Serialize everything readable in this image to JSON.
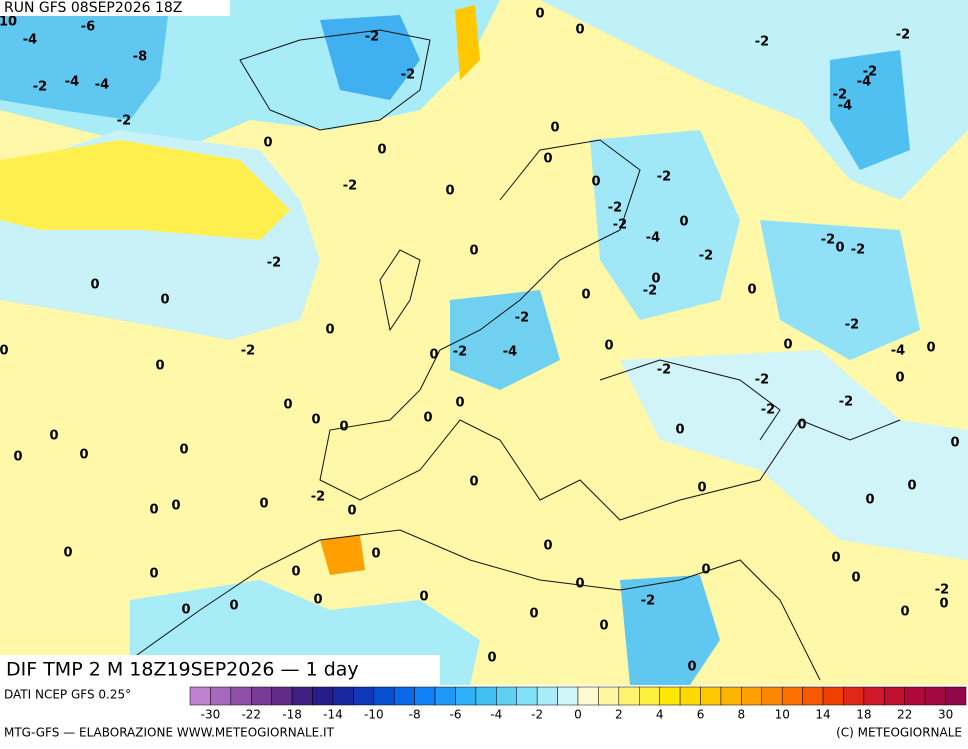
{
  "header": {
    "run": "RUN GFS 08SEP2026 18Z"
  },
  "map": {
    "title": "DIF TMP 2 M 18Z19SEP2026 — 1 day",
    "contour_labels": [
      10,
      -4,
      -6,
      -8,
      -2,
      -4,
      -4,
      -2,
      -2,
      -2,
      0,
      0,
      -2,
      -2,
      -2,
      -4,
      -2,
      -4,
      0,
      0,
      0,
      -2,
      0,
      0,
      0,
      -2,
      -2,
      -2,
      -4,
      0,
      -2,
      0,
      -2,
      -2,
      -2,
      0,
      0,
      -2,
      0,
      0,
      0,
      0,
      -2,
      0,
      -2,
      0,
      0,
      -2,
      -4,
      0,
      -2,
      -4,
      0,
      0,
      0,
      -2,
      -2,
      0,
      -2,
      -2,
      0,
      0,
      0,
      0,
      0,
      0,
      0,
      0,
      0,
      0,
      0,
      0,
      0,
      0,
      0,
      0,
      -2,
      0,
      0,
      0,
      0,
      0,
      0,
      0,
      0,
      0,
      0,
      0,
      0,
      0,
      0,
      0,
      0,
      0,
      -2,
      -2,
      0,
      0,
      0,
      0,
      0,
      0,
      -2
    ]
  },
  "colorbar": {
    "source": "DATI NCEP GFS 0.25°",
    "colors": [
      "#c080d0",
      "#a868c0",
      "#9050a8",
      "#783c98",
      "#602c88",
      "#402080",
      "#281c88",
      "#1828a0",
      "#1038b8",
      "#0850d0",
      "#0868e8",
      "#1080f8",
      "#2098f8",
      "#30b0f8",
      "#40c0f0",
      "#60d0f0",
      "#80e0f8",
      "#a8ecf8",
      "#d0f6fa",
      "#fffad0",
      "#fff8a0",
      "#fff470",
      "#fff040",
      "#ffe800",
      "#ffd800",
      "#ffc800",
      "#ffb400",
      "#ffa000",
      "#ff8800",
      "#ff7000",
      "#f85800",
      "#f04000",
      "#e02818",
      "#d01828",
      "#c01030",
      "#b00838",
      "#a00840",
      "#900848"
    ],
    "labels": [
      -30,
      -22,
      -18,
      -14,
      -10,
      -8,
      -6,
      -4,
      -2,
      0,
      2,
      4,
      6,
      8,
      10,
      14,
      18,
      22,
      30
    ]
  },
  "footer": {
    "left": "MTG-GFS — ELABORAZIONE WWW.METEOGIORNALE.IT",
    "right": "(C) METEOGIORNALE"
  }
}
